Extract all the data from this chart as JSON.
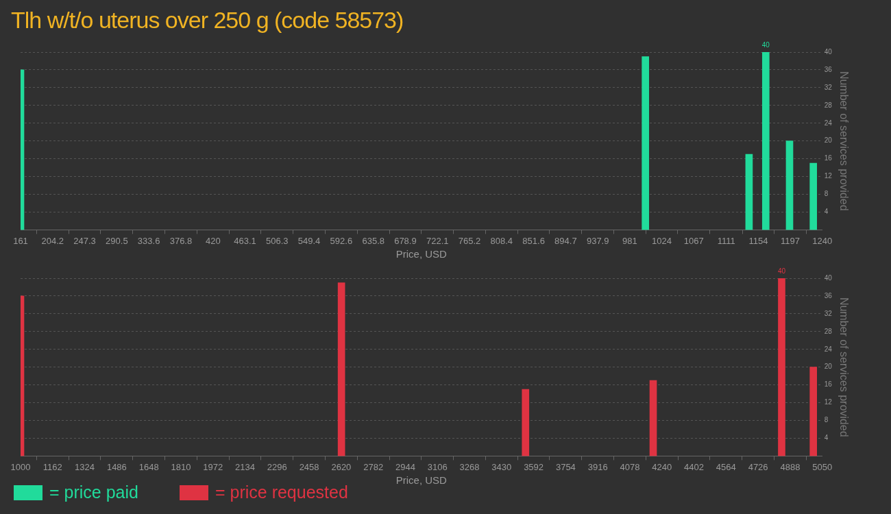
{
  "chart_data": [
    {
      "type": "bar",
      "title": "Tlh w/t/o uterus over 250 g (code 58573)",
      "xlabel": "Price, USD",
      "ylabel": "Number of services provided",
      "x": [
        161,
        1002,
        1141.5,
        1164,
        1196,
        1228
      ],
      "series": [
        {
          "name": "= price paid",
          "color": "#21db9b",
          "values": [
            36,
            39,
            17,
            40,
            20,
            15
          ],
          "value_labels": [
            null,
            null,
            null,
            "40",
            null,
            null
          ]
        }
      ],
      "xlim": [
        161,
        1240
      ],
      "xticks": [
        161,
        204.2,
        247.3,
        290.5,
        333.6,
        376.8,
        420,
        463.1,
        506.3,
        549.4,
        592.6,
        635.8,
        678.9,
        722.1,
        765.2,
        808.4,
        851.6,
        894.7,
        937.9,
        981,
        1024,
        1067,
        1111,
        1154,
        1197,
        1240
      ],
      "ylim": [
        0,
        40
      ],
      "yticks": [
        4,
        8,
        12,
        16,
        20,
        24,
        28,
        32,
        36,
        40
      ],
      "grid": "y",
      "legend": "bottom left"
    },
    {
      "type": "bar",
      "xlabel": "Price, USD",
      "ylabel": "Number of services provided",
      "x": [
        1000,
        2621,
        3551,
        4196,
        4845,
        5005
      ],
      "series": [
        {
          "name": "= price requested",
          "color": "#df3342",
          "values": [
            36,
            39,
            15,
            17,
            40,
            20
          ],
          "value_labels": [
            null,
            null,
            null,
            null,
            "40",
            null
          ]
        }
      ],
      "xlim": [
        1000,
        5050
      ],
      "xticks": [
        1000,
        1162,
        1324,
        1486,
        1648,
        1810,
        1972,
        2134,
        2296,
        2458,
        2620,
        2782,
        2944,
        3106,
        3268,
        3430,
        3592,
        3754,
        3916,
        4078,
        4240,
        4402,
        4564,
        4726,
        4888,
        5050
      ],
      "ylim": [
        0,
        40
      ],
      "yticks": [
        4,
        8,
        12,
        16,
        20,
        24,
        28,
        32,
        36,
        40
      ],
      "grid": "y",
      "legend": "bottom left"
    }
  ]
}
